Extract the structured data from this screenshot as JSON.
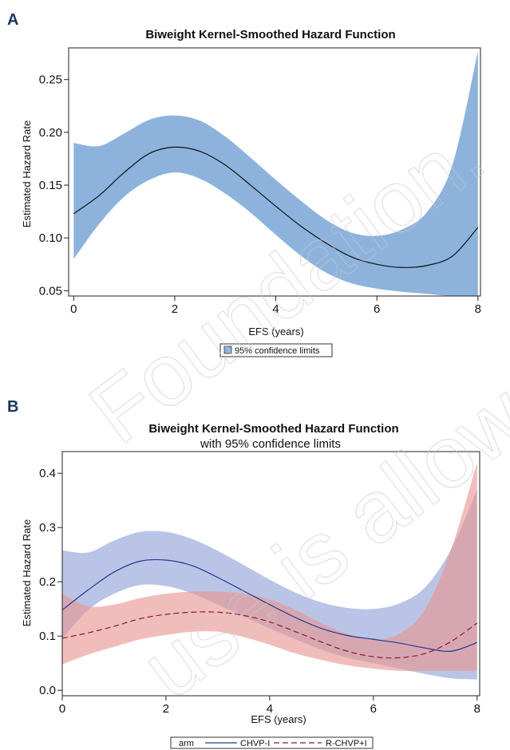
{
  "watermark": {
    "lines": [
      "Foundation.",
      "use is allowed"
    ]
  },
  "chart_data": [
    {
      "type": "line",
      "panel": "A",
      "title": "Biweight Kernel-Smoothed Hazard Function",
      "subtitle": "",
      "xlabel": "EFS (years)",
      "ylabel": "Estimated Hazard Rate",
      "xlim": [
        -0.1,
        8.05
      ],
      "ylim": [
        0.045,
        0.28
      ],
      "xticks": [
        0,
        2,
        4,
        6,
        8
      ],
      "yticks": [
        0.05,
        0.1,
        0.15,
        0.2,
        0.25
      ],
      "ytick_labels": [
        "0.05",
        "0.10",
        "0.15",
        "0.20",
        "0.25"
      ],
      "grid": false,
      "legend": {
        "position": "bottom",
        "entries": [
          {
            "label": "95% confidence limits",
            "kind": "band",
            "color": "#8db3dd"
          }
        ]
      },
      "bands": [
        {
          "color": "#8db3dd",
          "x": [
            0,
            0.5,
            1,
            1.5,
            2,
            2.5,
            3,
            3.5,
            4,
            4.5,
            5,
            5.5,
            6,
            6.5,
            7,
            7.5,
            8
          ],
          "upper": [
            0.19,
            0.187,
            0.199,
            0.212,
            0.216,
            0.211,
            0.196,
            0.176,
            0.155,
            0.135,
            0.117,
            0.105,
            0.102,
            0.108,
            0.125,
            0.17,
            0.277
          ],
          "lower": [
            0.08,
            0.113,
            0.139,
            0.155,
            0.162,
            0.156,
            0.142,
            0.124,
            0.103,
            0.083,
            0.067,
            0.057,
            0.052,
            0.049,
            0.047,
            0.045,
            0.045
          ]
        }
      ],
      "series": [
        {
          "color": "#111111",
          "dash": "",
          "x": [
            0,
            0.5,
            1,
            1.5,
            2,
            2.5,
            3,
            3.5,
            4,
            4.5,
            5,
            5.5,
            6,
            6.5,
            7,
            7.5,
            8
          ],
          "values": [
            0.123,
            0.14,
            0.162,
            0.18,
            0.186,
            0.182,
            0.169,
            0.15,
            0.13,
            0.111,
            0.095,
            0.082,
            0.075,
            0.072,
            0.074,
            0.083,
            0.11
          ]
        }
      ]
    },
    {
      "type": "line",
      "panel": "B",
      "title": "Biweight Kernel-Smoothed Hazard Function",
      "subtitle": "with 95% confidence limits",
      "xlabel": "EFS (years)",
      "ylabel": "Estimated Hazard Rate",
      "xlim": [
        0,
        8.05
      ],
      "ylim": [
        -0.01,
        0.44
      ],
      "xticks": [
        0,
        2,
        4,
        6,
        8
      ],
      "yticks": [
        0.0,
        0.1,
        0.2,
        0.3,
        0.4
      ],
      "ytick_labels": [
        "0.0",
        "0.1",
        "0.2",
        "0.3",
        "0.4"
      ],
      "grid": false,
      "legend": {
        "position": "bottom",
        "entries": [
          {
            "label": "arm",
            "kind": "title",
            "color": "#111111"
          },
          {
            "label": "CHVP-I",
            "kind": "line",
            "color": "#1f3a93",
            "dash": ""
          },
          {
            "label": "R-CHVP+I",
            "kind": "line",
            "color": "#8b1a2a",
            "dash": "7 4"
          }
        ]
      },
      "bands": [
        {
          "name": "CHVP-I",
          "color": "#8fa0d8",
          "x": [
            0,
            0.5,
            1,
            1.5,
            2,
            2.5,
            3,
            3.5,
            4,
            4.5,
            5,
            5.5,
            6,
            6.5,
            7,
            7.5,
            8
          ],
          "upper": [
            0.258,
            0.254,
            0.276,
            0.292,
            0.292,
            0.279,
            0.257,
            0.231,
            0.204,
            0.18,
            0.162,
            0.152,
            0.15,
            0.16,
            0.19,
            0.26,
            0.37
          ],
          "lower": [
            0.095,
            0.148,
            0.178,
            0.194,
            0.192,
            0.179,
            0.158,
            0.136,
            0.114,
            0.094,
            0.075,
            0.06,
            0.05,
            0.04,
            0.03,
            0.022,
            0.02
          ]
        },
        {
          "name": "R-CHVP+I",
          "color": "#e8958f",
          "x": [
            0,
            0.5,
            1,
            1.5,
            2,
            2.5,
            3,
            3.5,
            4,
            4.5,
            5,
            5.5,
            6,
            6.5,
            7,
            7.5,
            8
          ],
          "upper": [
            0.178,
            0.155,
            0.158,
            0.17,
            0.178,
            0.182,
            0.182,
            0.178,
            0.168,
            0.148,
            0.124,
            0.104,
            0.094,
            0.104,
            0.15,
            0.26,
            0.42
          ],
          "lower": [
            0.048,
            0.066,
            0.08,
            0.094,
            0.102,
            0.108,
            0.108,
            0.098,
            0.084,
            0.068,
            0.056,
            0.046,
            0.04,
            0.036,
            0.036,
            0.036,
            0.036
          ]
        }
      ],
      "series": [
        {
          "name": "CHVP-I",
          "color": "#1f3a93",
          "dash": "",
          "x": [
            0,
            0.5,
            1,
            1.5,
            2,
            2.5,
            3,
            3.5,
            4,
            4.5,
            5,
            5.5,
            6,
            6.5,
            7,
            7.5,
            8
          ],
          "values": [
            0.148,
            0.185,
            0.218,
            0.238,
            0.24,
            0.23,
            0.208,
            0.183,
            0.158,
            0.134,
            0.114,
            0.101,
            0.094,
            0.087,
            0.078,
            0.072,
            0.088
          ]
        },
        {
          "name": "R-CHVP+I",
          "color": "#8b1a2a",
          "dash": "7 4",
          "x": [
            0,
            0.5,
            1,
            1.5,
            2,
            2.5,
            3,
            3.5,
            4,
            4.5,
            5,
            5.5,
            6,
            6.5,
            7,
            7.5,
            8
          ],
          "values": [
            0.096,
            0.106,
            0.118,
            0.132,
            0.14,
            0.144,
            0.144,
            0.138,
            0.126,
            0.108,
            0.089,
            0.072,
            0.062,
            0.06,
            0.068,
            0.09,
            0.124
          ]
        }
      ]
    }
  ]
}
